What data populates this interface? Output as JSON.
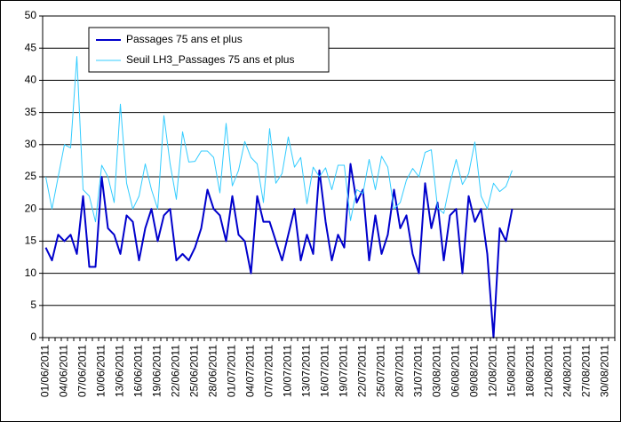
{
  "chart_data": {
    "type": "line",
    "categories": [
      "01/06/2011",
      null,
      null,
      "04/06/2011",
      null,
      null,
      "07/06/2011",
      null,
      null,
      "10/06/2011",
      null,
      null,
      "13/06/2011",
      null,
      null,
      "16/06/2011",
      null,
      null,
      "19/06/2011",
      null,
      null,
      "22/06/2011",
      null,
      null,
      "25/06/2011",
      null,
      null,
      "28/06/2011",
      null,
      null,
      "01/07/2011",
      null,
      null,
      "04/07/2011",
      null,
      null,
      "07/07/2011",
      null,
      null,
      "10/07/2011",
      null,
      null,
      "13/07/2011",
      null,
      null,
      "16/07/2011",
      null,
      null,
      "19/07/2011",
      null,
      null,
      "22/07/2011",
      null,
      null,
      "25/07/2011",
      null,
      null,
      "28/07/2011",
      null,
      null,
      "31/07/2011",
      null,
      null,
      "03/08/2011",
      null,
      null,
      "06/08/2011",
      null,
      null,
      "09/08/2011",
      null,
      null,
      "12/08/2011",
      null,
      null,
      "15/08/2011",
      null,
      null,
      "18/08/2011",
      null,
      null,
      "21/08/2011",
      null,
      null,
      "24/08/2011",
      null,
      null,
      "27/08/2011",
      null,
      null,
      "30/08/2011",
      null
    ],
    "series": [
      {
        "name": "Passages 75 ans et plus",
        "color": "#0000cc",
        "values": [
          14,
          12,
          16,
          15,
          16,
          13,
          22,
          11,
          11,
          25,
          17,
          16,
          13,
          19,
          18,
          12,
          17,
          20,
          15,
          19,
          20,
          12,
          13,
          12,
          14,
          17,
          23,
          20,
          19,
          15,
          22,
          16,
          15,
          10,
          22,
          18,
          18,
          15,
          12,
          16,
          20,
          12,
          16,
          13,
          26,
          18,
          12,
          16,
          14,
          27,
          21,
          23,
          12,
          19,
          13,
          16,
          23,
          17,
          19,
          13,
          10,
          24,
          17,
          21,
          12,
          19,
          20,
          10,
          22,
          18,
          20,
          13,
          0,
          17,
          15,
          20,
          null,
          null,
          null,
          null,
          null,
          null,
          null,
          null,
          null,
          null,
          null,
          null,
          null,
          null,
          null,
          null
        ]
      },
      {
        "name": "Seuil LH3_Passages 75 ans et plus",
        "color": "#33ccff",
        "values": [
          25,
          20,
          25,
          30,
          29.5,
          43.7,
          23,
          22,
          18,
          26.8,
          25,
          21,
          36.3,
          24,
          20,
          22,
          27,
          23,
          20,
          34.5,
          27,
          21.5,
          32,
          27.3,
          27.4,
          29,
          29,
          28,
          22.5,
          33.3,
          23.6,
          26,
          30.5,
          28,
          27,
          21,
          32.5,
          24,
          25.5,
          31.2,
          26.5,
          28,
          20.8,
          26.5,
          25,
          26.4,
          23,
          26.8,
          26.8,
          18.2,
          23,
          22.4,
          27.7,
          23,
          28.2,
          26.5,
          20,
          21,
          24.5,
          26.3,
          25,
          28.8,
          29.2,
          20.2,
          19.3,
          24,
          27.7,
          23.8,
          25.5,
          30.4,
          22,
          20,
          24,
          22.7,
          23.5,
          26,
          null,
          null,
          null,
          null,
          null,
          null,
          null,
          null,
          null,
          null,
          null,
          null,
          null,
          null,
          null,
          null
        ]
      }
    ],
    "ylim": [
      0,
      50
    ],
    "yticks": [
      0,
      5,
      10,
      15,
      20,
      25,
      30,
      35,
      40,
      45,
      50
    ],
    "grid": true
  }
}
